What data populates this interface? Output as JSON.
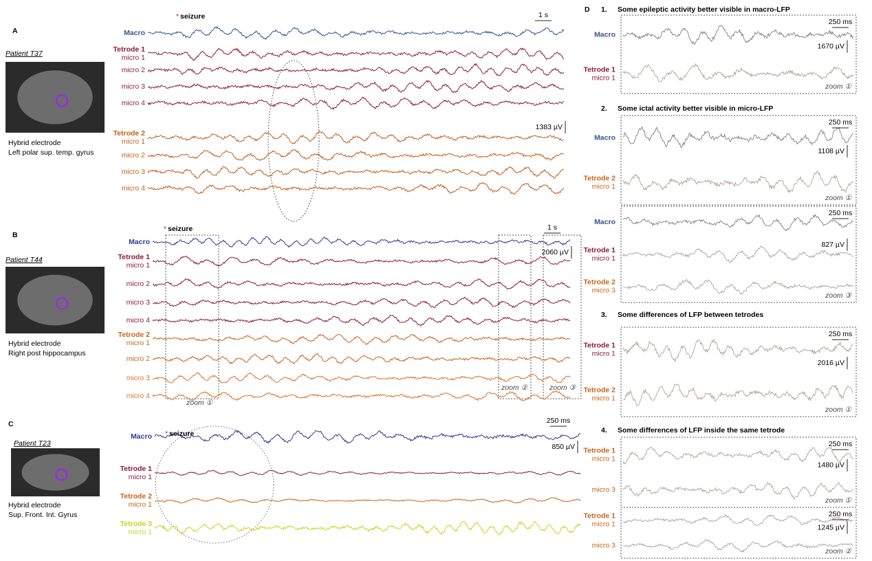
{
  "panels": [
    {
      "letter": "A",
      "patient": "Patient T37",
      "caption": [
        "Hybrid electrode",
        "Left polar sup. temp. gyrus"
      ],
      "seizure_marker": "*",
      "seizure": "seizure",
      "time_scale": "1 s",
      "volt_scale": "1383 µV",
      "channels": [
        {
          "label": [
            "Macro"
          ],
          "color": "#34568b"
        },
        {
          "label": [
            "Tetrode 1",
            "micro 1"
          ],
          "color": "#8e1b3a"
        },
        {
          "label": [
            "micro 2"
          ],
          "color": "#8e1b3a"
        },
        {
          "label": [
            "micro 3"
          ],
          "color": "#8e1b3a"
        },
        {
          "label": [
            "micro 4"
          ],
          "color": "#8e1b3a"
        },
        {
          "label": [
            "Tetrode 2",
            "micro 1"
          ],
          "color": "#c0601c"
        },
        {
          "label": [
            "micro 2"
          ],
          "color": "#c0601c"
        },
        {
          "label": [
            "micro 3"
          ],
          "color": "#c0601c"
        },
        {
          "label": [
            "micro 4"
          ],
          "color": "#c0601c"
        }
      ],
      "zooms": []
    },
    {
      "letter": "B",
      "patient": "Patient T44",
      "caption": [
        "Hybrid electrode",
        "Right post hippocampus"
      ],
      "seizure_marker": "*",
      "seizure": "seizure",
      "time_scale": "1 s",
      "volt_scale": "2060 µV",
      "channels": [
        {
          "label": [
            "Macro"
          ],
          "color": "#2e3d8f"
        },
        {
          "label": [
            "Tetrode 1",
            "micro 1"
          ],
          "color": "#8e1b3a"
        },
        {
          "label": [
            "micro 2"
          ],
          "color": "#8e1b3a"
        },
        {
          "label": [
            "micro 3"
          ],
          "color": "#8e1b3a"
        },
        {
          "label": [
            "micro 4"
          ],
          "color": "#8e1b3a"
        },
        {
          "label": [
            "Tetrode 2",
            "micro 1"
          ],
          "color": "#c8641c"
        },
        {
          "label": [
            "micro 2"
          ],
          "color": "#c8641c"
        },
        {
          "label": [
            "micro 3"
          ],
          "color": "#d8742a"
        },
        {
          "label": [
            "micro 4"
          ],
          "color": "#d8742a"
        }
      ],
      "zooms": [
        "zoom ①",
        "zoom ②",
        "zoom ③"
      ]
    },
    {
      "letter": "C",
      "patient": "Patient T23",
      "caption": [
        "Hybrid electrode",
        "Sup. Front.  Int. Gyrus"
      ],
      "seizure_marker": "*",
      "seizure": "seizure",
      "time_scale": "250  ms",
      "volt_scale": "850 µV",
      "channels": [
        {
          "label": [
            "Macro"
          ],
          "color": "#2e3d8f"
        },
        {
          "label": [
            "Tetrode 1",
            "micro 1"
          ],
          "color": "#8e1b3a"
        },
        {
          "label": [
            "Tetrode 2",
            "micro 1"
          ],
          "color": "#c8641c"
        },
        {
          "label": [
            "Tetrode 3",
            "micro 1"
          ],
          "color": "#c8d41e"
        }
      ],
      "zooms": []
    }
  ],
  "panel_d": {
    "letter": "D",
    "sections": [
      {
        "number": "1.",
        "title": "Some epileptic activity better visible in macro-LFP",
        "boxes": [
          {
            "channels": [
              {
                "label": [
                  "Macro"
                ],
                "color": "#34568b"
              },
              {
                "label": [
                  "Tetrode 1",
                  "micro 1"
                ],
                "color": "#8e1b3a"
              }
            ],
            "time_scale": "250 ms",
            "volt_scale": "1670 µV",
            "zoom": "zoom ①"
          }
        ]
      },
      {
        "number": "2.",
        "title": "Some ictal activity better visible in micro-LFP",
        "boxes": [
          {
            "channels": [
              {
                "label": [
                  "Macro"
                ],
                "color": "#34568b"
              },
              {
                "label": [
                  "Tetrode 2",
                  "micro 1"
                ],
                "color": "#c8641c"
              }
            ],
            "time_scale": "250 ms",
            "volt_scale": "1108 µV",
            "zoom": "zoom ①"
          },
          {
            "channels": [
              {
                "label": [
                  "Macro"
                ],
                "color": "#34568b"
              },
              {
                "label": [
                  "Tetrode 1",
                  "micro 1"
                ],
                "color": "#8e1b3a"
              },
              {
                "label": [
                  "Tetrode 2",
                  "micro 3"
                ],
                "color": "#c8641c"
              }
            ],
            "time_scale": "250 ms",
            "volt_scale": "827 µV",
            "zoom": "zoom ③"
          }
        ]
      },
      {
        "number": "3.",
        "title": "Some differences of LFP between tetrodes",
        "boxes": [
          {
            "channels": [
              {
                "label": [
                  "Tetrode 1",
                  "micro 1"
                ],
                "color": "#8e1b3a"
              },
              {
                "label": [
                  "Tetrode 2",
                  "micro 1"
                ],
                "color": "#c8641c"
              }
            ],
            "time_scale": "250 ms",
            "volt_scale": "2016 µV",
            "zoom": "zoom ①"
          }
        ]
      },
      {
        "number": "4.",
        "title": "Some differences of LFP inside the same tetrode",
        "boxes": [
          {
            "channels": [
              {
                "label": [
                  "Tetrode 1",
                  "micro 1"
                ],
                "color": "#c8641c"
              },
              {
                "label": [
                  "micro 3"
                ],
                "color": "#c8641c"
              }
            ],
            "time_scale": "250 ms",
            "volt_scale": "1480 µV",
            "zoom": "zoom ①"
          },
          {
            "channels": [
              {
                "label": [
                  "Tetrode 1",
                  "micro 1"
                ],
                "color": "#c8641c"
              },
              {
                "label": [
                  "micro 3"
                ],
                "color": "#c8641c"
              }
            ],
            "time_scale": "250 ms",
            "volt_scale": "1245 µV",
            "zoom": "zoom ②"
          }
        ]
      }
    ]
  }
}
